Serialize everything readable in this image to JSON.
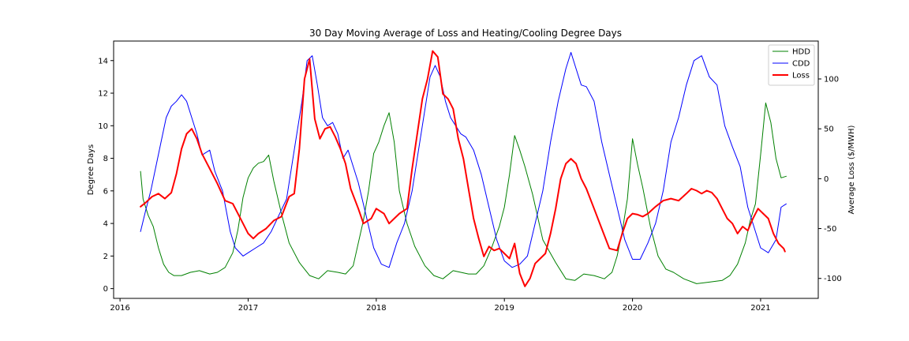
{
  "chart_data": {
    "type": "line",
    "title": "30 Day Moving Average of Loss and Heating/Cooling Degree Days",
    "ylabel_left": "Degree Days",
    "ylabel_right": "Average Loss ($/MWH)",
    "x_ticks": [
      "2016",
      "2017",
      "2018",
      "2019",
      "2020",
      "2021"
    ],
    "y_left_ticks": [
      0,
      2,
      4,
      6,
      8,
      10,
      12,
      14
    ],
    "y_right_ticks": [
      -100,
      -50,
      0,
      50,
      100
    ],
    "y_left_lim": [
      -0.6,
      15.2
    ],
    "y_right_lim": [
      -120,
      138
    ],
    "x_lim": [
      2015.95,
      2021.45
    ],
    "grid": false,
    "legend_position": "top-right",
    "series": [
      {
        "name": "HDD",
        "axis": "left",
        "color": "#008000",
        "x": [
          2016.16,
          2016.18,
          2016.22,
          2016.26,
          2016.3,
          2016.34,
          2016.38,
          2016.42,
          2016.48,
          2016.55,
          2016.62,
          2016.7,
          2016.76,
          2016.82,
          2016.88,
          2016.92,
          2016.96,
          2017.0,
          2017.04,
          2017.08,
          2017.12,
          2017.16,
          2017.2,
          2017.26,
          2017.32,
          2017.4,
          2017.48,
          2017.55,
          2017.62,
          2017.7,
          2017.76,
          2017.82,
          2017.86,
          2017.9,
          2017.94,
          2017.98,
          2018.02,
          2018.06,
          2018.1,
          2018.14,
          2018.18,
          2018.24,
          2018.3,
          2018.38,
          2018.45,
          2018.52,
          2018.6,
          2018.66,
          2018.72,
          2018.78,
          2018.84,
          2018.9,
          2018.96,
          2019.0,
          2019.04,
          2019.08,
          2019.12,
          2019.16,
          2019.22,
          2019.3,
          2019.4,
          2019.48,
          2019.55,
          2019.62,
          2019.7,
          2019.78,
          2019.84,
          2019.88,
          2019.92,
          2019.96,
          2020.0,
          2020.04,
          2020.08,
          2020.14,
          2020.2,
          2020.26,
          2020.32,
          2020.4,
          2020.5,
          2020.6,
          2020.7,
          2020.76,
          2020.82,
          2020.88,
          2020.92,
          2020.96,
          2021.0,
          2021.04,
          2021.08,
          2021.12,
          2021.16,
          2021.2
        ],
        "values": [
          7.2,
          5.5,
          4.5,
          3.8,
          2.5,
          1.5,
          1.0,
          0.8,
          0.8,
          1.0,
          1.1,
          0.9,
          1.0,
          1.3,
          2.2,
          3.6,
          5.6,
          6.8,
          7.4,
          7.7,
          7.8,
          8.2,
          6.6,
          4.6,
          2.8,
          1.6,
          0.8,
          0.6,
          1.1,
          1.0,
          0.9,
          1.4,
          2.8,
          4.2,
          6.0,
          8.3,
          9.0,
          10.0,
          10.8,
          9.0,
          6.0,
          4.0,
          2.6,
          1.4,
          0.8,
          0.6,
          1.1,
          1.0,
          0.9,
          0.9,
          1.4,
          2.5,
          3.8,
          5.0,
          7.0,
          9.4,
          8.5,
          7.5,
          5.8,
          3.0,
          1.6,
          0.6,
          0.5,
          0.9,
          0.8,
          0.6,
          1.0,
          2.0,
          3.5,
          5.5,
          9.2,
          7.6,
          6.2,
          3.8,
          2.0,
          1.2,
          1.0,
          0.6,
          0.3,
          0.4,
          0.5,
          0.8,
          1.5,
          2.8,
          4.2,
          5.2,
          8.2,
          11.4,
          10.2,
          8.0,
          6.8,
          6.9
        ]
      },
      {
        "name": "CDD",
        "axis": "left",
        "color": "#0000ff",
        "x": [
          2016.16,
          2016.2,
          2016.24,
          2016.28,
          2016.32,
          2016.36,
          2016.4,
          2016.44,
          2016.48,
          2016.52,
          2016.56,
          2016.6,
          2016.64,
          2016.7,
          2016.74,
          2016.8,
          2016.86,
          2016.9,
          2016.96,
          2017.0,
          2017.06,
          2017.12,
          2017.18,
          2017.24,
          2017.3,
          2017.36,
          2017.42,
          2017.46,
          2017.5,
          2017.54,
          2017.58,
          2017.62,
          2017.66,
          2017.7,
          2017.74,
          2017.78,
          2017.82,
          2017.86,
          2017.92,
          2017.98,
          2018.04,
          2018.1,
          2018.16,
          2018.22,
          2018.28,
          2018.34,
          2018.38,
          2018.42,
          2018.46,
          2018.5,
          2018.54,
          2018.58,
          2018.62,
          2018.66,
          2018.7,
          2018.76,
          2018.82,
          2018.88,
          2018.94,
          2019.0,
          2019.06,
          2019.12,
          2019.18,
          2019.24,
          2019.3,
          2019.36,
          2019.42,
          2019.48,
          2019.52,
          2019.56,
          2019.6,
          2019.64,
          2019.7,
          2019.76,
          2019.82,
          2019.88,
          2019.94,
          2020.0,
          2020.06,
          2020.12,
          2020.18,
          2020.24,
          2020.3,
          2020.36,
          2020.42,
          2020.48,
          2020.54,
          2020.6,
          2020.66,
          2020.72,
          2020.78,
          2020.84,
          2020.9,
          2020.96,
          2021.0,
          2021.06,
          2021.12,
          2021.16,
          2021.2
        ],
        "values": [
          3.5,
          4.8,
          6.0,
          7.5,
          9.0,
          10.5,
          11.2,
          11.5,
          11.9,
          11.5,
          10.5,
          9.5,
          8.2,
          8.5,
          7.2,
          6.0,
          3.5,
          2.5,
          2.0,
          2.2,
          2.5,
          2.8,
          3.5,
          4.5,
          5.5,
          8.5,
          11.5,
          14.0,
          14.3,
          12.5,
          10.5,
          10.0,
          10.2,
          9.5,
          8.0,
          8.5,
          7.5,
          6.5,
          4.5,
          2.5,
          1.5,
          1.3,
          2.8,
          4.0,
          6.0,
          9.0,
          11.0,
          13.0,
          13.7,
          13.0,
          11.5,
          10.5,
          10.0,
          9.5,
          9.3,
          8.5,
          7.0,
          5.0,
          3.0,
          1.7,
          1.3,
          1.5,
          2.0,
          4.0,
          6.0,
          9.0,
          11.5,
          13.5,
          14.5,
          13.5,
          12.5,
          12.4,
          11.5,
          9.0,
          7.0,
          5.0,
          3.0,
          1.8,
          1.8,
          2.8,
          4.0,
          6.0,
          9.0,
          10.5,
          12.5,
          14.0,
          14.3,
          13.0,
          12.5,
          10.0,
          8.7,
          7.5,
          5.0,
          3.5,
          2.5,
          2.2,
          3.0,
          5.0,
          5.2
        ]
      },
      {
        "name": "Loss",
        "axis": "right",
        "color": "#ff0000",
        "x": [
          2016.16,
          2016.2,
          2016.25,
          2016.3,
          2016.35,
          2016.4,
          2016.44,
          2016.48,
          2016.52,
          2016.56,
          2016.6,
          2016.64,
          2016.7,
          2016.76,
          2016.82,
          2016.88,
          2016.92,
          2016.96,
          2017.0,
          2017.04,
          2017.08,
          2017.14,
          2017.2,
          2017.26,
          2017.32,
          2017.36,
          2017.4,
          2017.44,
          2017.48,
          2017.52,
          2017.56,
          2017.6,
          2017.64,
          2017.68,
          2017.72,
          2017.76,
          2017.8,
          2017.86,
          2017.9,
          2017.96,
          2018.0,
          2018.06,
          2018.1,
          2018.14,
          2018.18,
          2018.24,
          2018.28,
          2018.32,
          2018.36,
          2018.4,
          2018.44,
          2018.48,
          2018.52,
          2018.56,
          2018.6,
          2018.64,
          2018.68,
          2018.72,
          2018.76,
          2018.8,
          2018.84,
          2018.88,
          2018.92,
          2018.96,
          2019.0,
          2019.04,
          2019.08,
          2019.12,
          2019.16,
          2019.2,
          2019.24,
          2019.28,
          2019.32,
          2019.36,
          2019.4,
          2019.44,
          2019.48,
          2019.52,
          2019.56,
          2019.6,
          2019.64,
          2019.7,
          2019.76,
          2019.82,
          2019.88,
          2019.92,
          2019.96,
          2020.0,
          2020.04,
          2020.08,
          2020.12,
          2020.18,
          2020.24,
          2020.3,
          2020.36,
          2020.42,
          2020.46,
          2020.5,
          2020.54,
          2020.58,
          2020.62,
          2020.66,
          2020.7,
          2020.74,
          2020.78,
          2020.82,
          2020.86,
          2020.9,
          2020.94,
          2020.98,
          2021.02,
          2021.06,
          2021.1,
          2021.14,
          2021.18,
          2021.19
        ],
        "values": [
          -28,
          -24,
          -18,
          -15,
          -20,
          -14,
          5,
          30,
          45,
          50,
          40,
          25,
          10,
          -5,
          -22,
          -25,
          -35,
          -45,
          -55,
          -60,
          -55,
          -50,
          -42,
          -38,
          -18,
          -15,
          30,
          100,
          120,
          60,
          40,
          50,
          52,
          42,
          30,
          15,
          -10,
          -30,
          -45,
          -40,
          -30,
          -35,
          -45,
          -40,
          -35,
          -30,
          10,
          45,
          80,
          100,
          128,
          122,
          85,
          80,
          70,
          40,
          20,
          -10,
          -40,
          -60,
          -78,
          -68,
          -72,
          -70,
          -75,
          -80,
          -65,
          -95,
          -108,
          -100,
          -85,
          -80,
          -75,
          -55,
          -30,
          0,
          15,
          20,
          15,
          0,
          -10,
          -30,
          -50,
          -70,
          -72,
          -55,
          -40,
          -35,
          -36,
          -38,
          -35,
          -28,
          -22,
          -20,
          -22,
          -15,
          -10,
          -12,
          -15,
          -12,
          -14,
          -20,
          -30,
          -40,
          -45,
          -55,
          -48,
          -52,
          -40,
          -30,
          -35,
          -40,
          -55,
          -65,
          -70,
          -73
        ]
      }
    ]
  }
}
